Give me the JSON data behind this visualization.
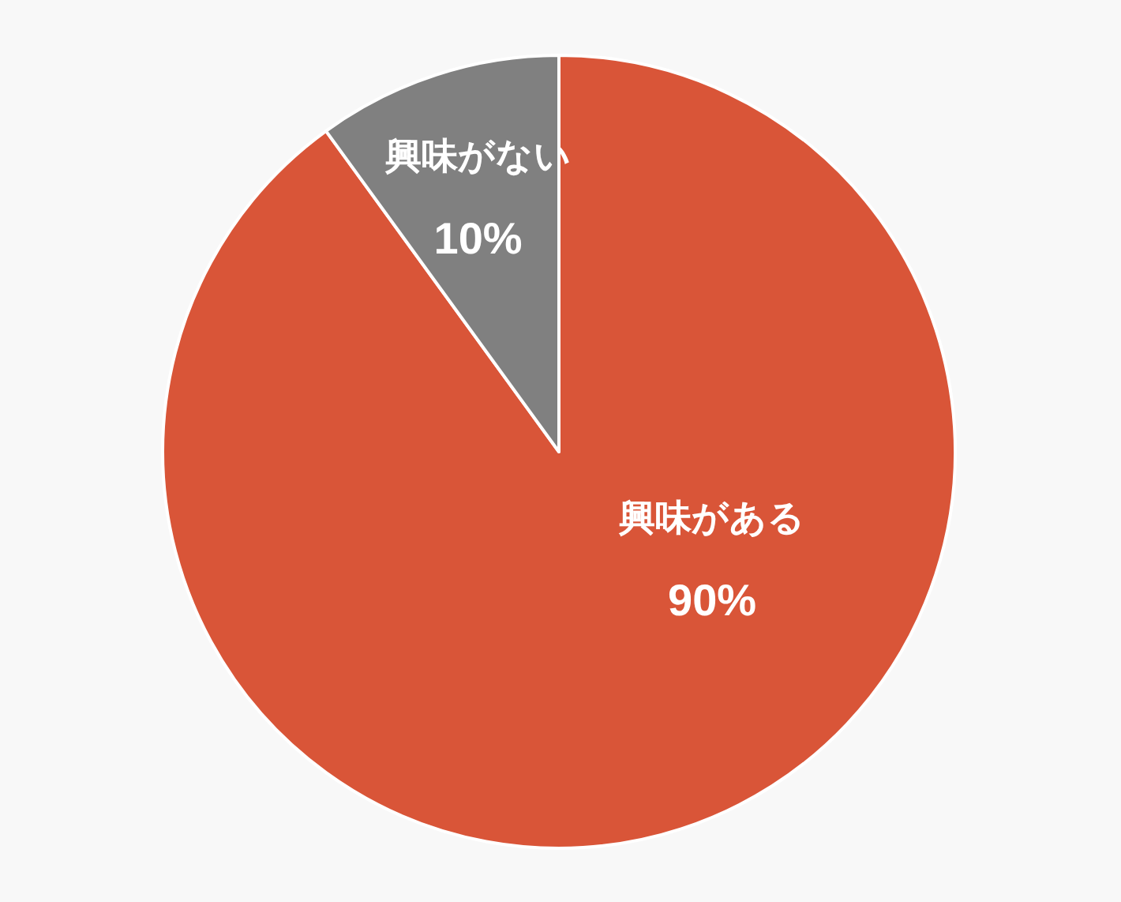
{
  "chart_data": {
    "type": "pie",
    "categories": [
      "興味がある",
      "興味がない"
    ],
    "values": [
      90,
      10
    ],
    "value_labels": [
      "90%",
      "10%"
    ],
    "colors": [
      "#d95538",
      "#808080"
    ]
  }
}
